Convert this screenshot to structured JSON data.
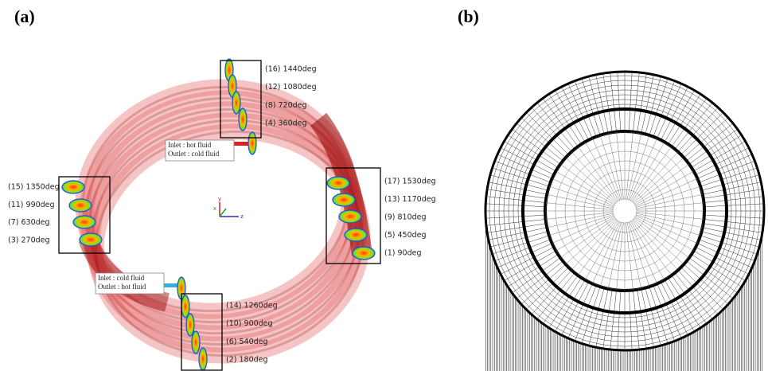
{
  "panels": [
    {
      "label": "(a)"
    },
    {
      "label": "(b)"
    }
  ],
  "groups": {
    "top": [
      "(16) 1440deg",
      "(12) 1080deg",
      "(8) 720deg",
      "(4) 360deg"
    ],
    "left": [
      "(15) 1350deg",
      "(11) 990deg",
      "(7) 630deg",
      "(3) 270deg"
    ],
    "right": [
      "(17) 1530deg",
      "(13) 1170deg",
      "(9) 810deg",
      "(5) 450deg",
      "(1) 90deg"
    ],
    "bottom": [
      "(14) 1260deg",
      "(10) 900deg",
      "(6) 540deg",
      "(2) 180deg"
    ]
  },
  "notes": [
    {
      "lines": [
        "Inlet : hot fluid",
        "Outlet : cold fluid"
      ]
    },
    {
      "lines": [
        "Inlet : cold fluid",
        "Outlet : hot fluid"
      ]
    }
  ],
  "axes": [
    "y",
    "x",
    "z"
  ]
}
